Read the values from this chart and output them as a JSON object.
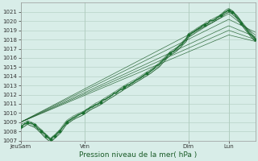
{
  "xlabel": "Pression niveau de la mer( hPa )",
  "ylim": [
    1007,
    1022
  ],
  "yticks": [
    1007,
    1008,
    1009,
    1010,
    1011,
    1012,
    1013,
    1014,
    1015,
    1016,
    1017,
    1018,
    1019,
    1020,
    1021
  ],
  "xtick_labels": [
    "JeuSam",
    "Ven",
    "Dim",
    "Lun"
  ],
  "xtick_positions": [
    0.0,
    0.28,
    0.73,
    0.905
  ],
  "xlim": [
    0.0,
    1.02
  ],
  "bg_color": "#d8ede8",
  "grid_color": "#b0ccbf",
  "line_color_dark": "#1a5c28",
  "line_color_main": "#1a7030",
  "tick_fontsize": 5.0,
  "xlabel_fontsize": 6.5,
  "xlabel_color": "#1a5c28",
  "straight_lines": [
    {
      "x0": 0.0,
      "y0": 1009.0,
      "x1": 0.905,
      "y1": 1020.8,
      "xend": 1.02,
      "yend": 1018.5
    },
    {
      "x0": 0.0,
      "y0": 1009.0,
      "x1": 0.905,
      "y1": 1020.2,
      "xend": 1.02,
      "yend": 1018.8
    },
    {
      "x0": 0.0,
      "y0": 1009.0,
      "x1": 0.905,
      "y1": 1019.5,
      "xend": 1.02,
      "yend": 1018.3
    },
    {
      "x0": 0.0,
      "y0": 1009.0,
      "x1": 0.905,
      "y1": 1019.0,
      "xend": 1.02,
      "yend": 1018.0
    },
    {
      "x0": 0.0,
      "y0": 1009.0,
      "x1": 0.905,
      "y1": 1018.5,
      "xend": 1.02,
      "yend": 1017.8
    }
  ],
  "main_curve_segments": [
    [
      0.0,
      1008.5
    ],
    [
      0.03,
      1009.0
    ],
    [
      0.06,
      1008.7
    ],
    [
      0.09,
      1008.0
    ],
    [
      0.11,
      1007.5
    ],
    [
      0.13,
      1007.1
    ],
    [
      0.15,
      1007.5
    ],
    [
      0.17,
      1008.0
    ],
    [
      0.2,
      1009.0
    ],
    [
      0.23,
      1009.5
    ],
    [
      0.27,
      1010.0
    ],
    [
      0.3,
      1010.5
    ],
    [
      0.35,
      1011.2
    ],
    [
      0.4,
      1012.0
    ],
    [
      0.45,
      1012.8
    ],
    [
      0.5,
      1013.5
    ],
    [
      0.55,
      1014.3
    ],
    [
      0.6,
      1015.2
    ],
    [
      0.63,
      1016.0
    ],
    [
      0.65,
      1016.5
    ],
    [
      0.68,
      1017.0
    ],
    [
      0.7,
      1017.5
    ],
    [
      0.72,
      1018.0
    ],
    [
      0.73,
      1018.5
    ],
    [
      0.75,
      1018.8
    ],
    [
      0.78,
      1019.3
    ],
    [
      0.8,
      1019.6
    ],
    [
      0.83,
      1020.0
    ],
    [
      0.85,
      1020.3
    ],
    [
      0.87,
      1020.6
    ],
    [
      0.89,
      1021.0
    ],
    [
      0.905,
      1021.2
    ],
    [
      0.92,
      1021.0
    ],
    [
      0.94,
      1020.5
    ],
    [
      0.96,
      1019.8
    ],
    [
      0.98,
      1019.2
    ],
    [
      1.02,
      1018.0
    ]
  ],
  "ensemble_offsets": [
    [
      0.0,
      0.3,
      0.0,
      0.5,
      0.0,
      -0.3
    ],
    [
      0.0,
      -0.2,
      0.0,
      0.2,
      0.0,
      -0.2
    ],
    [
      0.0,
      0.5,
      0.0,
      0.8,
      0.0,
      0.2
    ],
    [
      0.0,
      -0.3,
      0.0,
      -0.1,
      0.0,
      0.1
    ],
    [
      0.0,
      0.1,
      0.0,
      0.3,
      0.0,
      -0.1
    ]
  ]
}
